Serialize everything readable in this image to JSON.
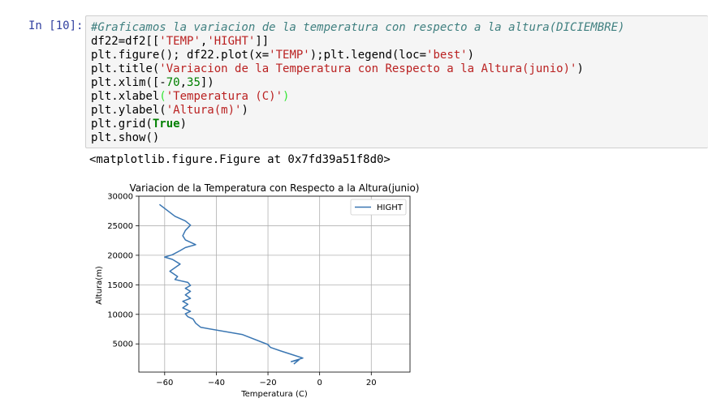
{
  "cell": {
    "prompt": "In [10]:",
    "lines": {
      "l1": "#Graficamos la variacion de la temperatura con respecto a la altura(DICIEMBRE)",
      "l2a": "df22=df2[[",
      "l2b": "'TEMP'",
      "l2c": ",",
      "l2d": "'HIGHT'",
      "l2e": "]]",
      "l3a": "plt.figure(); df22.plot(x=",
      "l3b": "'TEMP'",
      "l3c": ");plt.legend(loc=",
      "l3d": "'best'",
      "l3e": ")",
      "l4a": "plt.title(",
      "l4b": "'Variacion de la Temperatura con Respecto a la Altura(junio)'",
      "l4c": ")",
      "l5a": "plt.xlim([-",
      "l5b": "70",
      "l5c": ",",
      "l5d": "35",
      "l5e": "])",
      "l6a": "plt.xlabel",
      "l6b": "(",
      "l6c": "'Temperatura (C)'",
      "l6d": ")",
      "l7a": "plt.ylabel(",
      "l7b": "'Altura(m)'",
      "l7c": ")",
      "l8a": "plt.grid(",
      "l8b": "True",
      "l8c": ")",
      "l9": "plt.show()"
    },
    "output": "<matplotlib.figure.Figure at 0x7fd39a51f8d0>"
  },
  "colors": {
    "line": "#3a76b2",
    "grid": "#b0b0b0",
    "comment": "#408080",
    "string": "#BA2121",
    "number": "#008000",
    "prompt": "#303F9F"
  },
  "chart_data": {
    "type": "line",
    "title": "Variacion de la Temperatura con Respecto a la Altura(junio)",
    "xlabel": "Temperatura (C)",
    "ylabel": "Altura(m)",
    "xlim": [
      -70,
      35
    ],
    "ylim": [
      230,
      30000
    ],
    "xticks": [
      -60,
      -40,
      -20,
      0,
      20
    ],
    "xtick_labels": [
      "−60",
      "−40",
      "−20",
      "0",
      "20"
    ],
    "yticks": [
      5000,
      10000,
      15000,
      20000,
      25000,
      30000
    ],
    "ytick_labels": [
      "5000",
      "10000",
      "15000",
      "20000",
      "25000",
      "30000"
    ],
    "grid": true,
    "legend": "upper right",
    "series": [
      {
        "name": "HIGHT",
        "x": [
          -10,
          -8,
          -11,
          -6.5,
          -10,
          -15,
          -19,
          -20,
          -30,
          -46,
          -48,
          -49,
          -51,
          -52,
          -50,
          -53,
          -51,
          -53,
          -50,
          -52,
          -50,
          -52,
          -50,
          -51,
          -56,
          -55,
          -58,
          -54,
          -57,
          -60,
          -57,
          -54,
          -52,
          -48,
          -52,
          -53,
          -52,
          -50,
          -52,
          -56,
          -62
        ],
        "y": [
          1600,
          2300,
          2000,
          2600,
          3100,
          3800,
          4400,
          4900,
          6600,
          7800,
          8500,
          9200,
          9600,
          10100,
          10500,
          11100,
          11700,
          12200,
          12700,
          13300,
          13900,
          14400,
          14900,
          15400,
          15900,
          16400,
          17300,
          18500,
          19300,
          19700,
          20100,
          20800,
          21300,
          21800,
          22600,
          23300,
          24200,
          25100,
          25800,
          26600,
          28600
        ]
      }
    ]
  }
}
